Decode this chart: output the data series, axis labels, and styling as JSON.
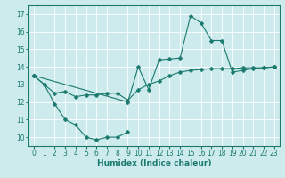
{
  "xlabel": "Humidex (Indice chaleur)",
  "bg_color": "#cdeaec",
  "line_color": "#1a7a6e",
  "grid_color": "#ffffff",
  "xlim": [
    -0.5,
    23.5
  ],
  "ylim": [
    9.5,
    17.5
  ],
  "yticks": [
    10,
    11,
    12,
    13,
    14,
    15,
    16,
    17
  ],
  "xticks": [
    0,
    1,
    2,
    3,
    4,
    5,
    6,
    7,
    8,
    9,
    10,
    11,
    12,
    13,
    14,
    15,
    16,
    17,
    18,
    19,
    20,
    21,
    22,
    23
  ],
  "line1_x": [
    0,
    1,
    2,
    3,
    4,
    5,
    6,
    7,
    8,
    9
  ],
  "line1_y": [
    13.5,
    13.0,
    11.9,
    11.0,
    10.7,
    10.0,
    9.85,
    10.0,
    10.0,
    10.3
  ],
  "line2_x": [
    0,
    1,
    2,
    3,
    4,
    5,
    6,
    7,
    8,
    9,
    10,
    11,
    12,
    13,
    14,
    15,
    16,
    17,
    18,
    19,
    20,
    21,
    22,
    23
  ],
  "line2_y": [
    13.5,
    13.0,
    12.5,
    12.6,
    12.3,
    12.4,
    12.4,
    12.5,
    12.5,
    12.1,
    12.7,
    13.0,
    13.2,
    13.5,
    13.7,
    13.8,
    13.85,
    13.9,
    13.9,
    13.9,
    13.95,
    13.95,
    13.95,
    14.0
  ],
  "line3_x": [
    0,
    9,
    10,
    11,
    12,
    13,
    14,
    15,
    16,
    17,
    18,
    19,
    20,
    21,
    22,
    23
  ],
  "line3_y": [
    13.5,
    12.0,
    14.0,
    12.7,
    14.4,
    14.45,
    14.5,
    16.9,
    16.5,
    15.5,
    15.5,
    13.7,
    13.8,
    13.9,
    13.95,
    14.0
  ]
}
